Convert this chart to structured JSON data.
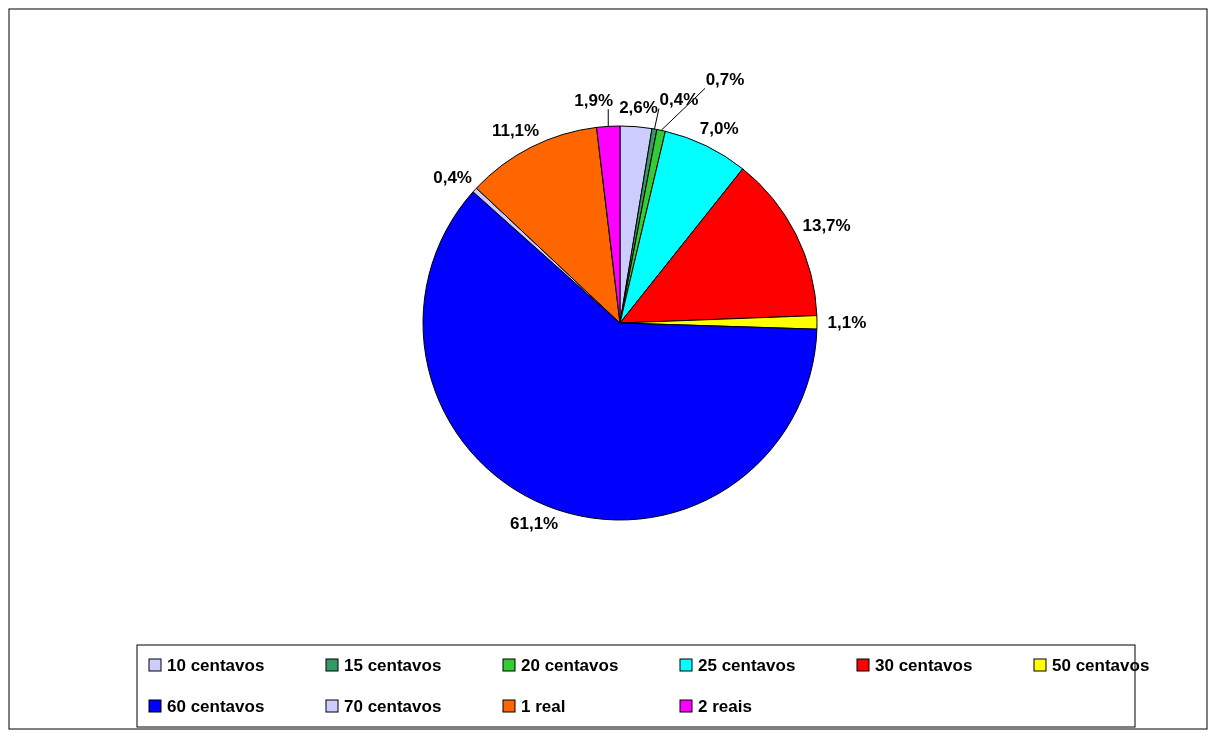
{
  "chart_data": {
    "type": "pie",
    "categories": [
      "10 centavos",
      "15 centavos",
      "20 centavos",
      "25 centavos",
      "30 centavos",
      "50 centavos",
      "60 centavos",
      "70 centavos",
      "1 real",
      "2 reais"
    ],
    "values": [
      2.6,
      0.4,
      0.7,
      7.0,
      13.7,
      1.1,
      61.1,
      0.4,
      11.1,
      1.9
    ],
    "value_labels": [
      "2,6%",
      "0,4%",
      "0,7%",
      "7,0%",
      "13,7%",
      "1,1%",
      "61,1%",
      "0,4%",
      "11,1%",
      "1,9%"
    ],
    "colors": [
      "#ccccff",
      "#339966",
      "#33cc33",
      "#00ffff",
      "#ff0000",
      "#ffff00",
      "#0000ff",
      "#ccccff",
      "#ff6600",
      "#ff00ff"
    ],
    "legend": "bottom"
  }
}
